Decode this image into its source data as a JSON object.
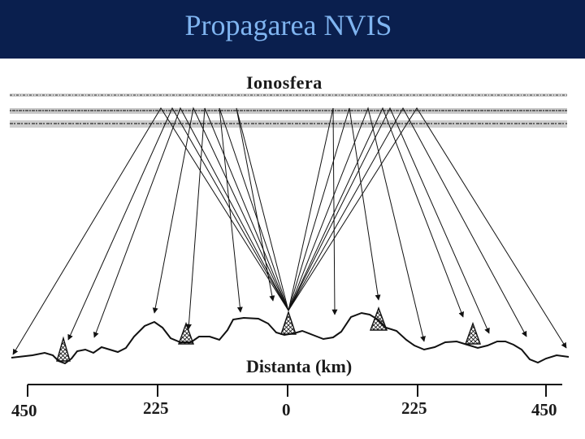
{
  "slide": {
    "title": "Propagarea NVIS",
    "title_bar_color": "#0a1f4e",
    "title_text_color": "#7fb4f0"
  },
  "diagram": {
    "ionosphere_label": "Ionosfera",
    "distance_label": "Distanta (km)",
    "scale_ticks": [
      "450",
      "225",
      "0",
      "225",
      "450"
    ],
    "antenna_count": 5,
    "ray_count": 14
  }
}
